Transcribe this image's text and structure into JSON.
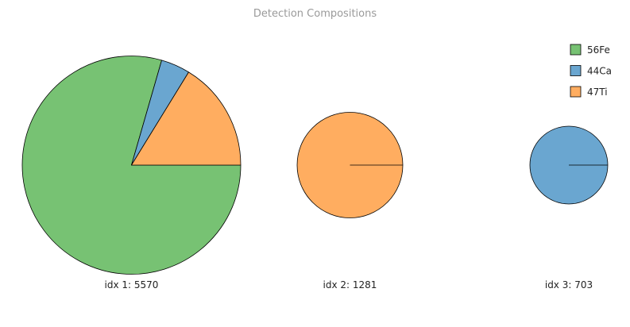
{
  "chart_data": {
    "type": "pie",
    "title": "Detection Compositions",
    "legend": {
      "placement": "top-right",
      "entries": [
        {
          "name": "56Fe",
          "color": "#77c273"
        },
        {
          "name": "44Ca",
          "color": "#6aa6d0"
        },
        {
          "name": "47Ti",
          "color": "#ffad60"
        }
      ]
    },
    "pies": [
      {
        "label": "idx 1: 5570",
        "total": 5570,
        "slices": [
          {
            "name": "56Fe",
            "value": 4426
          },
          {
            "name": "44Ca",
            "value": 240
          },
          {
            "name": "47Ti",
            "value": 904
          }
        ]
      },
      {
        "label": "idx 2: 1281",
        "total": 1281,
        "slices": [
          {
            "name": "47Ti",
            "value": 1281
          }
        ]
      },
      {
        "label": "idx 3: 703",
        "total": 703,
        "slices": [
          {
            "name": "44Ca",
            "value": 703
          }
        ]
      }
    ]
  }
}
